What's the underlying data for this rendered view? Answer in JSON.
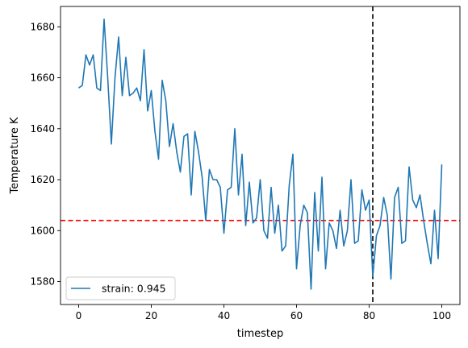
{
  "chart_data": {
    "type": "line",
    "xlabel": "timestep",
    "ylabel": "Temperature K",
    "xlim": [
      -5,
      105
    ],
    "ylim": [
      1571,
      1688
    ],
    "xticks": [
      0,
      20,
      40,
      60,
      80,
      100
    ],
    "yticks": [
      1580,
      1600,
      1620,
      1640,
      1660,
      1680
    ],
    "grid": false,
    "legend_position": "lower-left",
    "series": [
      {
        "name": "strain: 0.945",
        "color": "#1f77b4",
        "x": [
          0,
          1,
          2,
          3,
          4,
          5,
          6,
          7,
          8,
          9,
          10,
          11,
          12,
          13,
          14,
          15,
          16,
          17,
          18,
          19,
          20,
          21,
          22,
          23,
          24,
          25,
          26,
          27,
          28,
          29,
          30,
          31,
          32,
          33,
          34,
          35,
          36,
          37,
          38,
          39,
          40,
          41,
          42,
          43,
          44,
          45,
          46,
          47,
          48,
          49,
          50,
          51,
          52,
          53,
          54,
          55,
          56,
          57,
          58,
          59,
          60,
          61,
          62,
          63,
          64,
          65,
          66,
          67,
          68,
          69,
          70,
          71,
          72,
          73,
          74,
          75,
          76,
          77,
          78,
          79,
          80,
          81,
          82,
          83,
          84,
          85,
          86,
          87,
          88,
          89,
          90,
          91,
          92,
          93,
          94,
          95,
          96,
          97,
          98,
          99,
          100
        ],
        "y": [
          1656,
          1657,
          1669,
          1665,
          1669,
          1656,
          1655,
          1683,
          1660,
          1634,
          1660,
          1676,
          1653,
          1668,
          1653,
          1654,
          1656,
          1651,
          1671,
          1647,
          1655,
          1639,
          1628,
          1659,
          1651,
          1633,
          1642,
          1631,
          1623,
          1637,
          1638,
          1614,
          1639,
          1631,
          1621,
          1604,
          1624,
          1620,
          1620,
          1617,
          1599,
          1616,
          1617,
          1640,
          1614,
          1630,
          1602,
          1619,
          1603,
          1605,
          1620,
          1600,
          1597,
          1617,
          1599,
          1610,
          1592,
          1594,
          1618,
          1630,
          1585,
          1602,
          1610,
          1607,
          1577,
          1615,
          1592,
          1621,
          1585,
          1603,
          1600,
          1593,
          1608,
          1594,
          1600,
          1620,
          1595,
          1596,
          1616,
          1608,
          1612,
          1582,
          1598,
          1602,
          1613,
          1606,
          1581,
          1613,
          1617,
          1595,
          1596,
          1625,
          1612,
          1609,
          1614,
          1604,
          1595,
          1587,
          1608,
          1589,
          1626
        ]
      }
    ],
    "annotations": [
      {
        "kind": "hline",
        "y": 1604,
        "color": "#ff0000",
        "style": "dashed"
      },
      {
        "kind": "vline",
        "x": 81,
        "color": "#000000",
        "style": "dashed"
      }
    ]
  }
}
